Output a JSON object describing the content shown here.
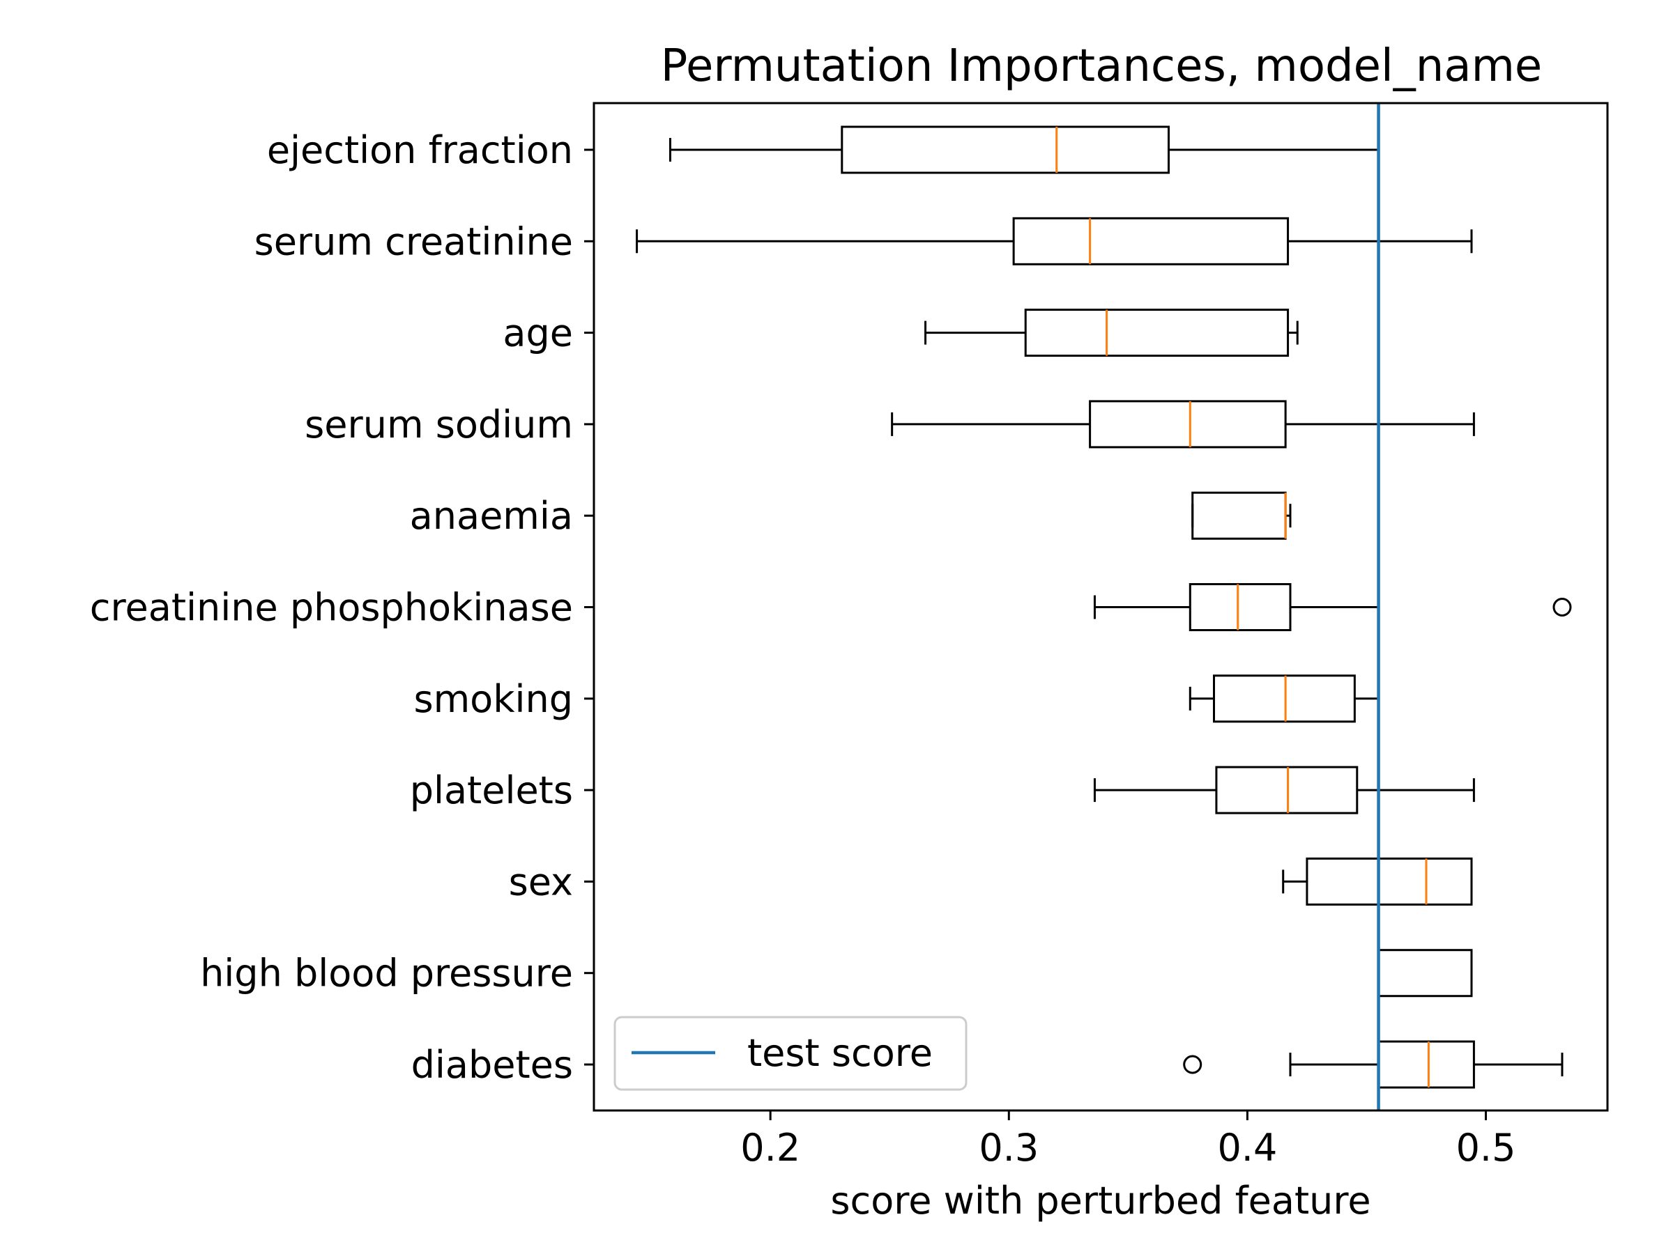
{
  "chart_data": {
    "type": "boxplot",
    "orientation": "horizontal",
    "title": "Permutation Importances, model_name",
    "xlabel": "score with perturbed feature",
    "ylabel": "",
    "xlim": [
      0.126,
      0.551
    ],
    "xticks": [
      0.2,
      0.3,
      0.4,
      0.5
    ],
    "xtick_labels": [
      "0.2",
      "0.3",
      "0.4",
      "0.5"
    ],
    "grid": false,
    "legend_position": "lower-left",
    "box_edge_color": "#000000",
    "median_color": "#ff7f0e",
    "reference_line_color": "#1f77b4",
    "reference_line": {
      "label": "test score",
      "value": 0.455
    },
    "features": [
      {
        "label": "ejection fraction",
        "whisker_low": 0.158,
        "q1": 0.23,
        "median": 0.32,
        "q3": 0.367,
        "whisker_high": 0.455,
        "outliers": []
      },
      {
        "label": "serum creatinine",
        "whisker_low": 0.144,
        "q1": 0.302,
        "median": 0.334,
        "q3": 0.417,
        "whisker_high": 0.494,
        "outliers": []
      },
      {
        "label": "age",
        "whisker_low": 0.265,
        "q1": 0.307,
        "median": 0.341,
        "q3": 0.417,
        "whisker_high": 0.421,
        "outliers": []
      },
      {
        "label": "serum sodium",
        "whisker_low": 0.251,
        "q1": 0.334,
        "median": 0.376,
        "q3": 0.416,
        "whisker_high": 0.495,
        "outliers": []
      },
      {
        "label": "anaemia",
        "whisker_low": 0.377,
        "q1": 0.377,
        "median": 0.416,
        "q3": 0.416,
        "whisker_high": 0.418,
        "outliers": []
      },
      {
        "label": "creatinine phosphokinase",
        "whisker_low": 0.336,
        "q1": 0.376,
        "median": 0.396,
        "q3": 0.418,
        "whisker_high": 0.455,
        "outliers": [
          0.532
        ]
      },
      {
        "label": "smoking",
        "whisker_low": 0.376,
        "q1": 0.386,
        "median": 0.416,
        "q3": 0.445,
        "whisker_high": 0.455,
        "outliers": []
      },
      {
        "label": "platelets",
        "whisker_low": 0.336,
        "q1": 0.387,
        "median": 0.417,
        "q3": 0.446,
        "whisker_high": 0.495,
        "outliers": []
      },
      {
        "label": "sex",
        "whisker_low": 0.415,
        "q1": 0.425,
        "median": 0.475,
        "q3": 0.494,
        "whisker_high": 0.494,
        "outliers": []
      },
      {
        "label": "high blood pressure",
        "whisker_low": 0.455,
        "q1": 0.455,
        "median": 0.455,
        "q3": 0.494,
        "whisker_high": 0.494,
        "outliers": []
      },
      {
        "label": "diabetes",
        "whisker_low": 0.418,
        "q1": 0.455,
        "median": 0.476,
        "q3": 0.495,
        "whisker_high": 0.532,
        "outliers": [
          0.377
        ]
      }
    ]
  }
}
